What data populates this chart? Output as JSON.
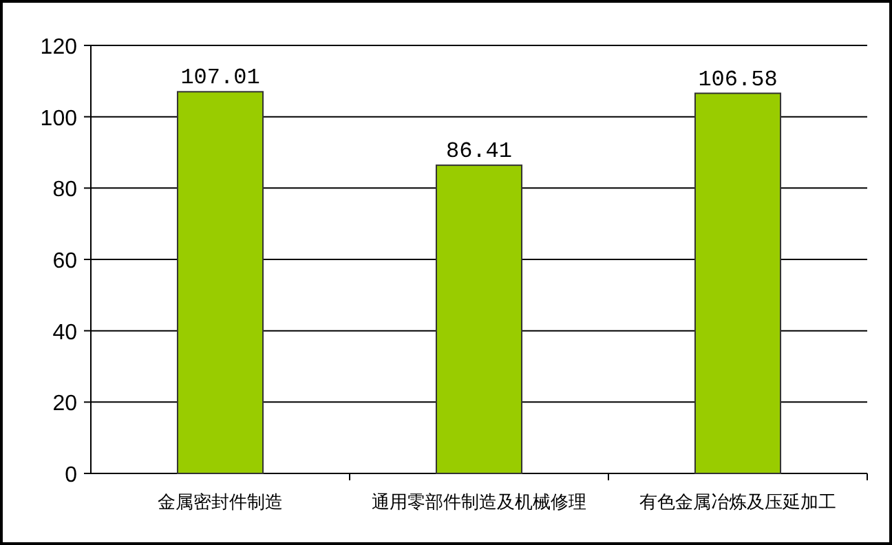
{
  "chart_data": {
    "type": "bar",
    "categories": [
      "金属密封件制造",
      "通用零部件制造及机械修理",
      "有色金属冶炼及压延加工"
    ],
    "values": [
      107.01,
      86.41,
      106.58
    ],
    "color": "#99cc00",
    "ylim": [
      0,
      120
    ],
    "yticks": [
      0,
      20,
      40,
      60,
      80,
      100,
      120
    ],
    "grid": "y",
    "data_labels": true
  }
}
